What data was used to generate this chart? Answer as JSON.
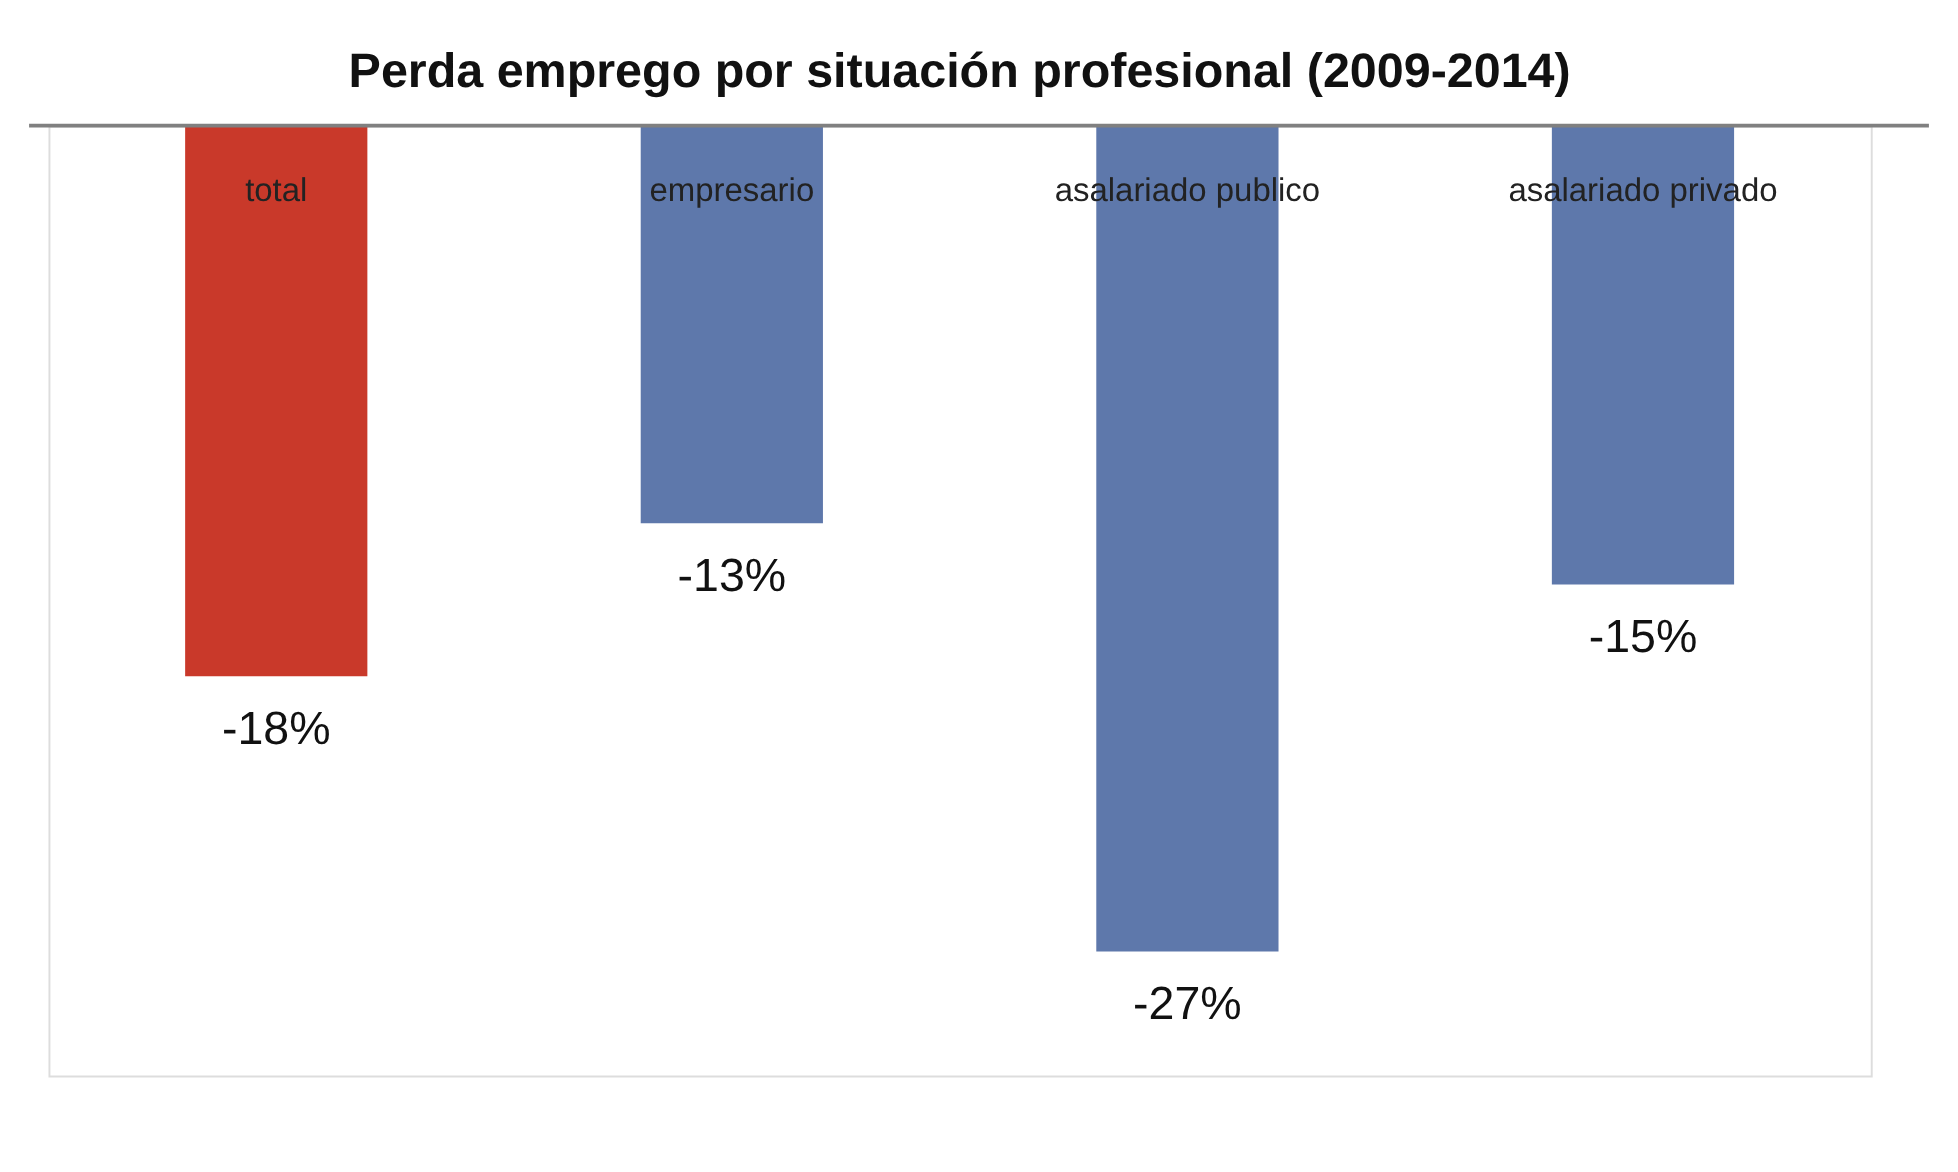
{
  "chart_data": {
    "type": "bar",
    "title": "Perda emprego por situación profesional (2009-2014)",
    "categories": [
      "total",
      "empresario",
      "asalariado publico",
      "asalariado privado"
    ],
    "values": [
      -18,
      -13,
      -27,
      -15
    ],
    "colors": [
      "#c9392a",
      "#5e78ab",
      "#5e78ab",
      "#5e78ab"
    ],
    "value_labels": [
      "-18%",
      "-13%",
      "-27%",
      "-15%"
    ],
    "legend": false,
    "grid": false
  }
}
